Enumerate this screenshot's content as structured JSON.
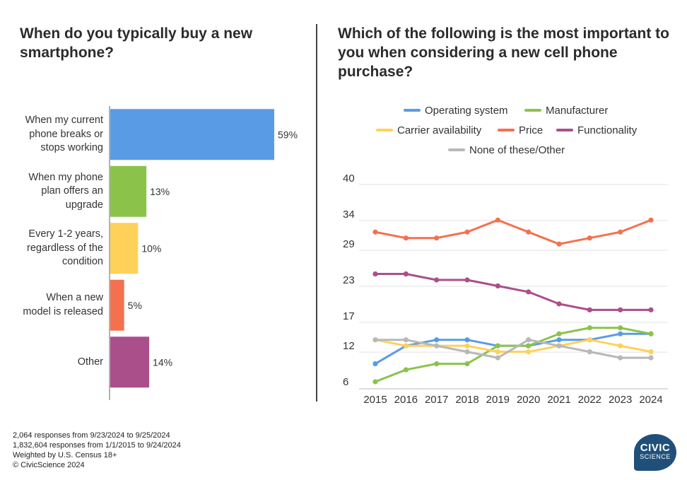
{
  "left_title": "When do you typically buy a new smartphone?",
  "right_title": "Which of the following is the most important to you when considering a new cell phone purchase?",
  "chart_data": [
    {
      "type": "bar",
      "orientation": "horizontal",
      "title": "When do you typically buy a new smartphone?",
      "categories": [
        "When my current phone breaks or stops working",
        "When my phone plan offers an upgrade",
        "Every 1-2 years, regardless of the condition",
        "When a new model is released",
        "Other"
      ],
      "category_lines": [
        [
          "When my current",
          "phone breaks or",
          "stops working"
        ],
        [
          "When my phone",
          "plan offers an",
          "upgrade"
        ],
        [
          "Every 1-2 years,",
          "regardless of the",
          "condition"
        ],
        [
          "When a new",
          "model is released"
        ],
        [
          "Other"
        ]
      ],
      "values": [
        59,
        13,
        10,
        5,
        14
      ],
      "value_labels": [
        "59%",
        "13%",
        "10%",
        "5%",
        "14%"
      ],
      "colors": [
        "#5a9be6",
        "#8bc34a",
        "#ffd159",
        "#f4714f",
        "#ab4f8b"
      ]
    },
    {
      "type": "line",
      "title": "Which of the following is the most important to you when considering a new cell phone purchase?",
      "x": [
        "2015",
        "2016",
        "2017",
        "2018",
        "2019",
        "2020",
        "2021",
        "2022",
        "2023",
        "2024"
      ],
      "ylim": [
        6,
        40
      ],
      "yticks": [
        "40",
        "34",
        "29",
        "23",
        "17",
        "12",
        "6"
      ],
      "grid": true,
      "legend_position": "top",
      "series": [
        {
          "name": "Operating system",
          "color": "#5a9be6",
          "values": [
            9,
            12,
            13,
            13,
            12,
            12,
            13,
            13,
            14,
            14
          ]
        },
        {
          "name": "Manufacturer",
          "color": "#8bc34a",
          "values": [
            6,
            8,
            9,
            9,
            12,
            12,
            14,
            15,
            15,
            14
          ]
        },
        {
          "name": "Carrier availability",
          "color": "#ffd159",
          "values": [
            13,
            12,
            12,
            12,
            11,
            11,
            12,
            13,
            12,
            11
          ]
        },
        {
          "name": "Price",
          "color": "#f4714f",
          "values": [
            31,
            30,
            30,
            31,
            33,
            31,
            29,
            30,
            31,
            33
          ]
        },
        {
          "name": "Functionality",
          "color": "#ab4f8b",
          "values": [
            24,
            24,
            23,
            23,
            22,
            21,
            19,
            18,
            18,
            18
          ]
        },
        {
          "name": "None of these/Other",
          "color": "#b8b8b8",
          "values": [
            13,
            13,
            12,
            11,
            10,
            13,
            12,
            11,
            10,
            10
          ]
        }
      ]
    }
  ],
  "footer": [
    "2,064 responses from 9/23/2024 to 9/25/2024",
    "1,832,604 responses from 1/1/2015 to 9/24/2024",
    "Weighted by U.S. Census 18+",
    "© CivicScience 2024"
  ],
  "logo": {
    "line1": "CIVIC",
    "line2": "SCIENCE",
    "color": "#20507a"
  }
}
